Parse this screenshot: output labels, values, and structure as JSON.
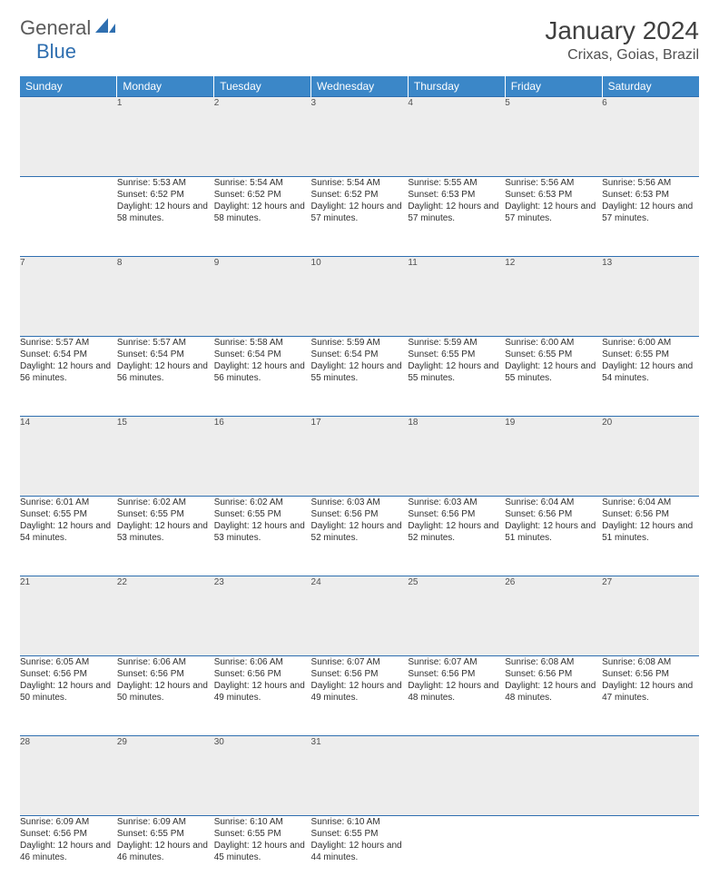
{
  "logo": {
    "text1": "General",
    "text2": "Blue"
  },
  "title": "January 2024",
  "location": "Crixas, Goias, Brazil",
  "colors": {
    "header_bg": "#3b87c8",
    "header_fg": "#ffffff",
    "rule": "#2f6fb0",
    "daynum_bg": "#ededed",
    "logo_gray": "#5a5a5a",
    "logo_blue": "#2f6fb0"
  },
  "typography": {
    "title_fontsize": 28,
    "location_fontsize": 16,
    "header_fontsize": 12,
    "cell_fontsize": 10,
    "daynum_fontsize": 11
  },
  "headers": [
    "Sunday",
    "Monday",
    "Tuesday",
    "Wednesday",
    "Thursday",
    "Friday",
    "Saturday"
  ],
  "weeks": [
    [
      {
        "n": "",
        "sr": "",
        "ss": "",
        "dl": ""
      },
      {
        "n": "1",
        "sr": "5:53 AM",
        "ss": "6:52 PM",
        "dl": "12 hours and 58 minutes."
      },
      {
        "n": "2",
        "sr": "5:54 AM",
        "ss": "6:52 PM",
        "dl": "12 hours and 58 minutes."
      },
      {
        "n": "3",
        "sr": "5:54 AM",
        "ss": "6:52 PM",
        "dl": "12 hours and 57 minutes."
      },
      {
        "n": "4",
        "sr": "5:55 AM",
        "ss": "6:53 PM",
        "dl": "12 hours and 57 minutes."
      },
      {
        "n": "5",
        "sr": "5:56 AM",
        "ss": "6:53 PM",
        "dl": "12 hours and 57 minutes."
      },
      {
        "n": "6",
        "sr": "5:56 AM",
        "ss": "6:53 PM",
        "dl": "12 hours and 57 minutes."
      }
    ],
    [
      {
        "n": "7",
        "sr": "5:57 AM",
        "ss": "6:54 PM",
        "dl": "12 hours and 56 minutes."
      },
      {
        "n": "8",
        "sr": "5:57 AM",
        "ss": "6:54 PM",
        "dl": "12 hours and 56 minutes."
      },
      {
        "n": "9",
        "sr": "5:58 AM",
        "ss": "6:54 PM",
        "dl": "12 hours and 56 minutes."
      },
      {
        "n": "10",
        "sr": "5:59 AM",
        "ss": "6:54 PM",
        "dl": "12 hours and 55 minutes."
      },
      {
        "n": "11",
        "sr": "5:59 AM",
        "ss": "6:55 PM",
        "dl": "12 hours and 55 minutes."
      },
      {
        "n": "12",
        "sr": "6:00 AM",
        "ss": "6:55 PM",
        "dl": "12 hours and 55 minutes."
      },
      {
        "n": "13",
        "sr": "6:00 AM",
        "ss": "6:55 PM",
        "dl": "12 hours and 54 minutes."
      }
    ],
    [
      {
        "n": "14",
        "sr": "6:01 AM",
        "ss": "6:55 PM",
        "dl": "12 hours and 54 minutes."
      },
      {
        "n": "15",
        "sr": "6:02 AM",
        "ss": "6:55 PM",
        "dl": "12 hours and 53 minutes."
      },
      {
        "n": "16",
        "sr": "6:02 AM",
        "ss": "6:55 PM",
        "dl": "12 hours and 53 minutes."
      },
      {
        "n": "17",
        "sr": "6:03 AM",
        "ss": "6:56 PM",
        "dl": "12 hours and 52 minutes."
      },
      {
        "n": "18",
        "sr": "6:03 AM",
        "ss": "6:56 PM",
        "dl": "12 hours and 52 minutes."
      },
      {
        "n": "19",
        "sr": "6:04 AM",
        "ss": "6:56 PM",
        "dl": "12 hours and 51 minutes."
      },
      {
        "n": "20",
        "sr": "6:04 AM",
        "ss": "6:56 PM",
        "dl": "12 hours and 51 minutes."
      }
    ],
    [
      {
        "n": "21",
        "sr": "6:05 AM",
        "ss": "6:56 PM",
        "dl": "12 hours and 50 minutes."
      },
      {
        "n": "22",
        "sr": "6:06 AM",
        "ss": "6:56 PM",
        "dl": "12 hours and 50 minutes."
      },
      {
        "n": "23",
        "sr": "6:06 AM",
        "ss": "6:56 PM",
        "dl": "12 hours and 49 minutes."
      },
      {
        "n": "24",
        "sr": "6:07 AM",
        "ss": "6:56 PM",
        "dl": "12 hours and 49 minutes."
      },
      {
        "n": "25",
        "sr": "6:07 AM",
        "ss": "6:56 PM",
        "dl": "12 hours and 48 minutes."
      },
      {
        "n": "26",
        "sr": "6:08 AM",
        "ss": "6:56 PM",
        "dl": "12 hours and 48 minutes."
      },
      {
        "n": "27",
        "sr": "6:08 AM",
        "ss": "6:56 PM",
        "dl": "12 hours and 47 minutes."
      }
    ],
    [
      {
        "n": "28",
        "sr": "6:09 AM",
        "ss": "6:56 PM",
        "dl": "12 hours and 46 minutes."
      },
      {
        "n": "29",
        "sr": "6:09 AM",
        "ss": "6:55 PM",
        "dl": "12 hours and 46 minutes."
      },
      {
        "n": "30",
        "sr": "6:10 AM",
        "ss": "6:55 PM",
        "dl": "12 hours and 45 minutes."
      },
      {
        "n": "31",
        "sr": "6:10 AM",
        "ss": "6:55 PM",
        "dl": "12 hours and 44 minutes."
      },
      {
        "n": "",
        "sr": "",
        "ss": "",
        "dl": ""
      },
      {
        "n": "",
        "sr": "",
        "ss": "",
        "dl": ""
      },
      {
        "n": "",
        "sr": "",
        "ss": "",
        "dl": ""
      }
    ]
  ],
  "labels": {
    "sunrise": "Sunrise: ",
    "sunset": "Sunset: ",
    "daylight": "Daylight: "
  }
}
